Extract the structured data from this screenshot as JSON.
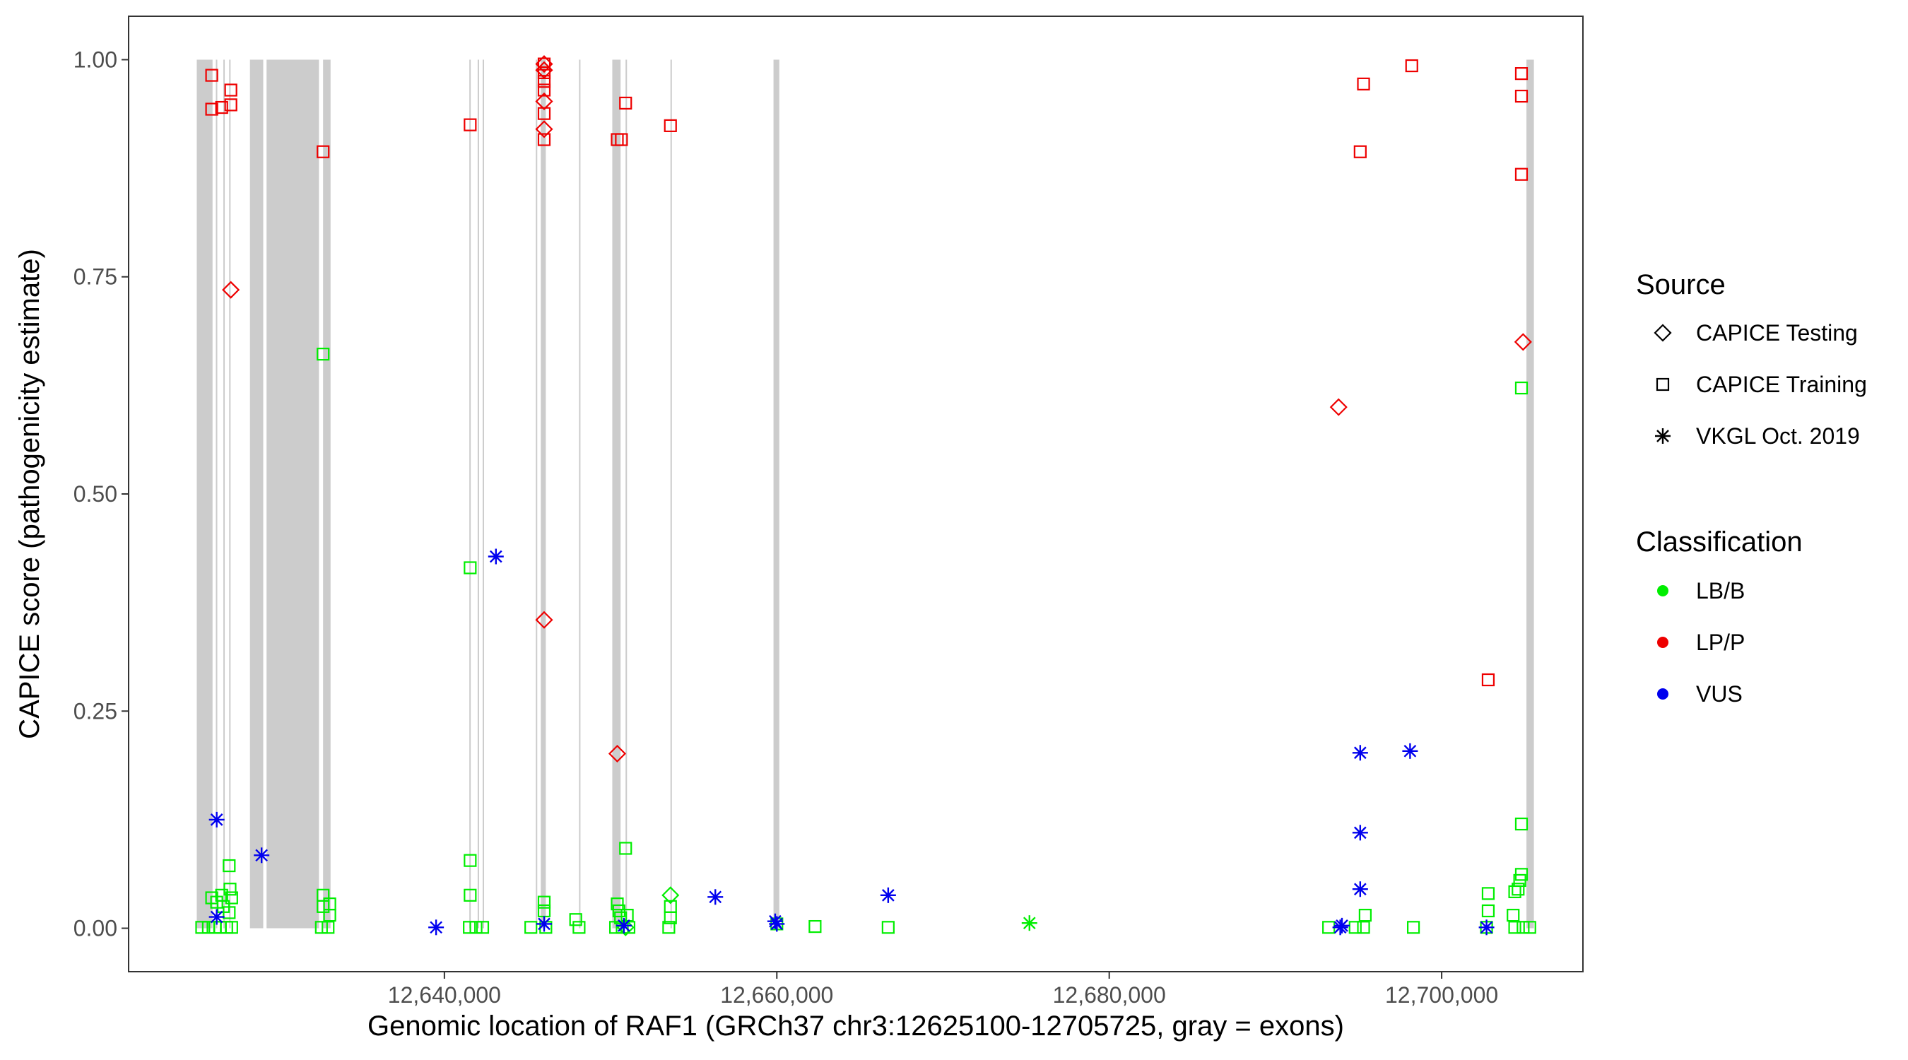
{
  "chart_data": {
    "type": "scatter",
    "xlabel": "Genomic location of RAF1 (GRCh37 chr3:12625100-12705725, gray = exons)",
    "ylabel": "CAPICE score (pathogenicity estimate)",
    "xlim": [
      12621000,
      12708500
    ],
    "ylim": [
      -0.05,
      1.05
    ],
    "x_ticks": [
      12640000,
      12660000,
      12680000,
      12700000
    ],
    "x_tick_labels": [
      "12,640,000",
      "12,660,000",
      "12,680,000",
      "12,700,000"
    ],
    "y_ticks": [
      0.0,
      0.25,
      0.5,
      0.75,
      1.0
    ],
    "y_tick_labels": [
      "0.00",
      "0.25",
      "0.50",
      "0.75",
      "1.00"
    ],
    "grid": false,
    "exon_color": "#cccccc",
    "exons": [
      [
        12625100,
        12626050
      ],
      [
        12626250,
        12626320
      ],
      [
        12626700,
        12626780
      ],
      [
        12627050,
        12627130
      ],
      [
        12628300,
        12629100
      ],
      [
        12629300,
        12632450
      ],
      [
        12632700,
        12633150
      ],
      [
        12641500,
        12641580
      ],
      [
        12642000,
        12642080
      ],
      [
        12642300,
        12642380
      ],
      [
        12645500,
        12645570
      ],
      [
        12645800,
        12646100
      ],
      [
        12648100,
        12648170
      ],
      [
        12650100,
        12650600
      ],
      [
        12650900,
        12650980
      ],
      [
        12653600,
        12653680
      ],
      [
        12659800,
        12660150
      ],
      [
        12705100,
        12705550
      ]
    ],
    "legend": {
      "position": "right",
      "source_title": "Source",
      "source_entries": [
        {
          "label": "CAPICE Testing",
          "shape": "diamond"
        },
        {
          "label": "CAPICE Training",
          "shape": "square"
        },
        {
          "label": "VKGL Oct. 2019",
          "shape": "asterisk"
        }
      ],
      "class_title": "Classification",
      "class_entries": [
        {
          "label": "LB/B",
          "color": "#00ee00"
        },
        {
          "label": "LP/P",
          "color": "#ee0000"
        },
        {
          "label": "VUS",
          "color": "#0000ee"
        }
      ]
    },
    "colors": {
      "LB/B": "#00ee00",
      "LP/P": "#ee0000",
      "VUS": "#0000ee"
    },
    "series": [
      {
        "name": "CAPICE Training",
        "shape": "square",
        "points": [
          {
            "x": 12626000,
            "y": 0.982,
            "c": "LP/P"
          },
          {
            "x": 12626000,
            "y": 0.943,
            "c": "LP/P"
          },
          {
            "x": 12626600,
            "y": 0.945,
            "c": "LP/P"
          },
          {
            "x": 12627150,
            "y": 0.965,
            "c": "LP/P"
          },
          {
            "x": 12627150,
            "y": 0.948,
            "c": "LP/P"
          },
          {
            "x": 12632700,
            "y": 0.894,
            "c": "LP/P"
          },
          {
            "x": 12641550,
            "y": 0.925,
            "c": "LP/P"
          },
          {
            "x": 12646000,
            "y": 0.995,
            "c": "LP/P"
          },
          {
            "x": 12646000,
            "y": 0.985,
            "c": "LP/P"
          },
          {
            "x": 12646000,
            "y": 0.975,
            "c": "LP/P"
          },
          {
            "x": 12646000,
            "y": 0.965,
            "c": "LP/P"
          },
          {
            "x": 12646000,
            "y": 0.938,
            "c": "LP/P"
          },
          {
            "x": 12646000,
            "y": 0.908,
            "c": "LP/P"
          },
          {
            "x": 12650400,
            "y": 0.908,
            "c": "LP/P"
          },
          {
            "x": 12650650,
            "y": 0.908,
            "c": "LP/P"
          },
          {
            "x": 12650900,
            "y": 0.95,
            "c": "LP/P"
          },
          {
            "x": 12653600,
            "y": 0.924,
            "c": "LP/P"
          },
          {
            "x": 12695300,
            "y": 0.972,
            "c": "LP/P"
          },
          {
            "x": 12698200,
            "y": 0.993,
            "c": "LP/P"
          },
          {
            "x": 12695100,
            "y": 0.894,
            "c": "LP/P"
          },
          {
            "x": 12704800,
            "y": 0.984,
            "c": "LP/P"
          },
          {
            "x": 12704800,
            "y": 0.958,
            "c": "LP/P"
          },
          {
            "x": 12704800,
            "y": 0.868,
            "c": "LP/P"
          },
          {
            "x": 12702800,
            "y": 0.286,
            "c": "LP/P"
          },
          {
            "x": 12632700,
            "y": 0.661,
            "c": "LB/B"
          },
          {
            "x": 12641550,
            "y": 0.415,
            "c": "LB/B"
          },
          {
            "x": 12704800,
            "y": 0.622,
            "c": "LB/B"
          },
          {
            "x": 12704800,
            "y": 0.12,
            "c": "LB/B"
          },
          {
            "x": 12641550,
            "y": 0.078,
            "c": "LB/B"
          },
          {
            "x": 12641550,
            "y": 0.038,
            "c": "LB/B"
          },
          {
            "x": 12650900,
            "y": 0.092,
            "c": "LB/B"
          },
          {
            "x": 12627050,
            "y": 0.072,
            "c": "LB/B"
          },
          {
            "x": 12704800,
            "y": 0.062,
            "c": "LB/B"
          },
          {
            "x": 12704700,
            "y": 0.055,
            "c": "LB/B"
          },
          {
            "x": 12704600,
            "y": 0.045,
            "c": "LB/B"
          },
          {
            "x": 12704400,
            "y": 0.042,
            "c": "LB/B"
          },
          {
            "x": 12704300,
            "y": 0.015,
            "c": "LB/B"
          },
          {
            "x": 12702800,
            "y": 0.04,
            "c": "LB/B"
          },
          {
            "x": 12702800,
            "y": 0.02,
            "c": "LB/B"
          },
          {
            "x": 12695400,
            "y": 0.015,
            "c": "LB/B"
          },
          {
            "x": 12632700,
            "y": 0.038,
            "c": "LB/B"
          },
          {
            "x": 12632700,
            "y": 0.025,
            "c": "LB/B"
          },
          {
            "x": 12633100,
            "y": 0.028,
            "c": "LB/B"
          },
          {
            "x": 12633100,
            "y": 0.015,
            "c": "LB/B"
          },
          {
            "x": 12626000,
            "y": 0.035,
            "c": "LB/B"
          },
          {
            "x": 12626300,
            "y": 0.03,
            "c": "LB/B"
          },
          {
            "x": 12626600,
            "y": 0.038,
            "c": "LB/B"
          },
          {
            "x": 12626700,
            "y": 0.025,
            "c": "LB/B"
          },
          {
            "x": 12627100,
            "y": 0.045,
            "c": "LB/B"
          },
          {
            "x": 12627200,
            "y": 0.035,
            "c": "LB/B"
          },
          {
            "x": 12627050,
            "y": 0.018,
            "c": "LB/B"
          },
          {
            "x": 12646000,
            "y": 0.03,
            "c": "LB/B"
          },
          {
            "x": 12646000,
            "y": 0.02,
            "c": "LB/B"
          },
          {
            "x": 12647900,
            "y": 0.01,
            "c": "LB/B"
          },
          {
            "x": 12650400,
            "y": 0.028,
            "c": "LB/B"
          },
          {
            "x": 12650500,
            "y": 0.02,
            "c": "LB/B"
          },
          {
            "x": 12650600,
            "y": 0.012,
            "c": "LB/B"
          },
          {
            "x": 12651000,
            "y": 0.015,
            "c": "LB/B"
          },
          {
            "x": 12653600,
            "y": 0.025,
            "c": "LB/B"
          },
          {
            "x": 12653600,
            "y": 0.012,
            "c": "LB/B"
          },
          {
            "x": 12660000,
            "y": 0.005,
            "c": "LB/B"
          },
          {
            "x": 12662300,
            "y": 0.002,
            "c": "LB/B"
          },
          {
            "x": 12666700,
            "y": 0.001,
            "c": "LB/B"
          },
          {
            "x": 12693200,
            "y": 0.001,
            "c": "LB/B"
          },
          {
            "x": 12698300,
            "y": 0.001,
            "c": "LB/B"
          },
          {
            "x": 12645200,
            "y": 0.001,
            "c": "LB/B"
          },
          {
            "x": 12625400,
            "y": 0.001,
            "c": "LB/B"
          },
          {
            "x": 12625800,
            "y": 0.001,
            "c": "LB/B"
          },
          {
            "x": 12626200,
            "y": 0.001,
            "c": "LB/B"
          },
          {
            "x": 12626500,
            "y": 0.001,
            "c": "LB/B"
          },
          {
            "x": 12626900,
            "y": 0.001,
            "c": "LB/B"
          },
          {
            "x": 12627200,
            "y": 0.001,
            "c": "LB/B"
          },
          {
            "x": 12632600,
            "y": 0.001,
            "c": "LB/B"
          },
          {
            "x": 12633000,
            "y": 0.001,
            "c": "LB/B"
          },
          {
            "x": 12641500,
            "y": 0.001,
            "c": "LB/B"
          },
          {
            "x": 12641900,
            "y": 0.001,
            "c": "LB/B"
          },
          {
            "x": 12642300,
            "y": 0.001,
            "c": "LB/B"
          },
          {
            "x": 12646100,
            "y": 0.001,
            "c": "LB/B"
          },
          {
            "x": 12648100,
            "y": 0.001,
            "c": "LB/B"
          },
          {
            "x": 12650300,
            "y": 0.001,
            "c": "LB/B"
          },
          {
            "x": 12650700,
            "y": 0.001,
            "c": "LB/B"
          },
          {
            "x": 12651100,
            "y": 0.001,
            "c": "LB/B"
          },
          {
            "x": 12653500,
            "y": 0.001,
            "c": "LB/B"
          },
          {
            "x": 12694800,
            "y": 0.001,
            "c": "LB/B"
          },
          {
            "x": 12695300,
            "y": 0.001,
            "c": "LB/B"
          },
          {
            "x": 12702700,
            "y": 0.001,
            "c": "LB/B"
          },
          {
            "x": 12704400,
            "y": 0.001,
            "c": "LB/B"
          },
          {
            "x": 12704900,
            "y": 0.001,
            "c": "LB/B"
          },
          {
            "x": 12705300,
            "y": 0.001,
            "c": "LB/B"
          }
        ]
      },
      {
        "name": "CAPICE Testing",
        "shape": "diamond",
        "points": [
          {
            "x": 12627150,
            "y": 0.735,
            "c": "LP/P"
          },
          {
            "x": 12646000,
            "y": 0.995,
            "c": "LP/P"
          },
          {
            "x": 12646000,
            "y": 0.988,
            "c": "LP/P"
          },
          {
            "x": 12646000,
            "y": 0.952,
            "c": "LP/P"
          },
          {
            "x": 12646000,
            "y": 0.92,
            "c": "LP/P"
          },
          {
            "x": 12646000,
            "y": 0.355,
            "c": "LP/P"
          },
          {
            "x": 12650400,
            "y": 0.201,
            "c": "LP/P"
          },
          {
            "x": 12693800,
            "y": 0.6,
            "c": "LP/P"
          },
          {
            "x": 12704900,
            "y": 0.675,
            "c": "LP/P"
          },
          {
            "x": 12653600,
            "y": 0.038,
            "c": "LB/B"
          },
          {
            "x": 12650900,
            "y": 0.001,
            "c": "LB/B"
          }
        ]
      },
      {
        "name": "VKGL Oct. 2019",
        "shape": "asterisk",
        "points": [
          {
            "x": 12626300,
            "y": 0.125,
            "c": "VUS"
          },
          {
            "x": 12629000,
            "y": 0.084,
            "c": "VUS"
          },
          {
            "x": 12643100,
            "y": 0.428,
            "c": "VUS"
          },
          {
            "x": 12639500,
            "y": 0.001,
            "c": "VUS"
          },
          {
            "x": 12646000,
            "y": 0.005,
            "c": "VUS"
          },
          {
            "x": 12650800,
            "y": 0.003,
            "c": "VUS"
          },
          {
            "x": 12656300,
            "y": 0.036,
            "c": "VUS"
          },
          {
            "x": 12659900,
            "y": 0.008,
            "c": "VUS"
          },
          {
            "x": 12660000,
            "y": 0.005,
            "c": "VUS"
          },
          {
            "x": 12666700,
            "y": 0.038,
            "c": "VUS"
          },
          {
            "x": 12693900,
            "y": 0.001,
            "c": "VUS"
          },
          {
            "x": 12694000,
            "y": 0.003,
            "c": "VUS"
          },
          {
            "x": 12695100,
            "y": 0.202,
            "c": "VUS"
          },
          {
            "x": 12695100,
            "y": 0.11,
            "c": "VUS"
          },
          {
            "x": 12695100,
            "y": 0.045,
            "c": "VUS"
          },
          {
            "x": 12698100,
            "y": 0.204,
            "c": "VUS"
          },
          {
            "x": 12702700,
            "y": 0.001,
            "c": "VUS"
          },
          {
            "x": 12626300,
            "y": 0.013,
            "c": "VUS"
          },
          {
            "x": 12675200,
            "y": 0.006,
            "c": "LB/B"
          }
        ]
      }
    ]
  }
}
